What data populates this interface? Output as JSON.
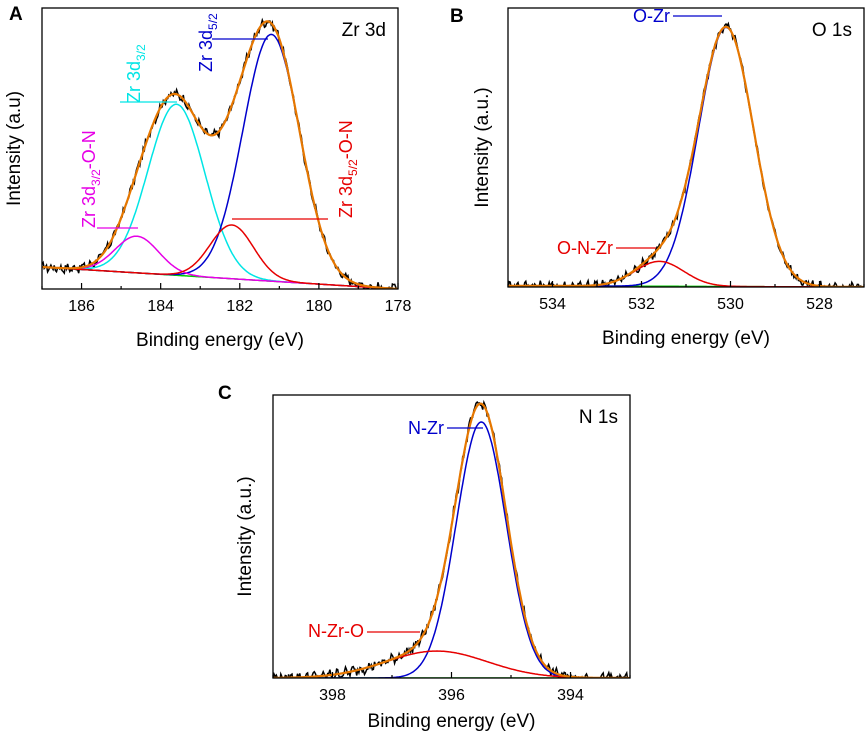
{
  "figure": {
    "description_panels": [
      "A",
      "B",
      "C"
    ]
  },
  "chart_data": [
    {
      "panel": "A",
      "type": "line",
      "title": "Zr 3d",
      "xlabel": "Binding energy (eV)",
      "ylabel": "Intensity (a.u)",
      "xlim": [
        187,
        178
      ],
      "ylim": [
        0,
        1.15
      ],
      "x_ticks": [
        186,
        184,
        182,
        180,
        178
      ],
      "x_tick_labels": [
        "186",
        "184",
        "182",
        "180",
        "178"
      ],
      "series": [
        {
          "name": "Zr 3d3/2",
          "color": "#00e5e5",
          "kind": "gauss",
          "center": 183.6,
          "amp": 0.7,
          "sigma": 0.72,
          "base": "background"
        },
        {
          "name": "Zr 3d5/2",
          "color": "#0000cc",
          "kind": "gauss",
          "center": 181.2,
          "amp": 1.01,
          "sigma": 0.72,
          "base": "background"
        },
        {
          "name": "Zr 3d3/2-O-N",
          "color": "#e600e6",
          "kind": "gauss",
          "center": 184.6,
          "amp": 0.15,
          "sigma": 0.55,
          "base": "background"
        },
        {
          "name": "Zr 3d5/2-O-N",
          "color": "#e60000",
          "kind": "gauss",
          "center": 182.2,
          "amp": 0.22,
          "sigma": 0.55,
          "base": "background"
        },
        {
          "name": "Background",
          "color": "#00cc00",
          "kind": "linear",
          "x": [
            187,
            178
          ],
          "y": [
            0.09,
            0.0
          ]
        },
        {
          "name": "Raw",
          "color": "#000000",
          "kind": "envelope",
          "noise": true
        },
        {
          "name": "Envelope",
          "color": "#e67700",
          "kind": "envelope"
        }
      ],
      "annotations": [
        {
          "label": "Zr 3d",
          "sub": "3/2",
          "suffix": "",
          "color": "#00e5e5",
          "peak_x": 183.6,
          "peak_y": 0.77
        },
        {
          "label": "Zr 3d",
          "sub": "5/2",
          "suffix": "",
          "color": "#0000cc",
          "peak_x": 181.2,
          "peak_y": 1.06
        },
        {
          "label": "Zr 3d",
          "sub": "3/2",
          "suffix": "-O-N",
          "color": "#e600e6",
          "peak_x": 184.6,
          "peak_y": 0.24
        },
        {
          "label": "Zr 3d",
          "sub": "5/2",
          "suffix": "-O-N",
          "color": "#e60000",
          "peak_x": 182.2,
          "peak_y": 0.26
        }
      ]
    },
    {
      "panel": "B",
      "type": "line",
      "title": "O 1s",
      "xlabel": "Binding energy (eV)",
      "ylabel": "Intensity (a.u.)",
      "xlim": [
        535,
        527
      ],
      "ylim": [
        0,
        1.12
      ],
      "x_ticks": [
        534,
        532,
        530,
        528
      ],
      "x_tick_labels": [
        "534",
        "532",
        "530",
        "528"
      ],
      "series": [
        {
          "name": "O-Zr",
          "color": "#0000cc",
          "kind": "gauss",
          "center": 530.1,
          "amp": 1.04,
          "sigma": 0.62,
          "base": "background"
        },
        {
          "name": "O-N-Zr",
          "color": "#e60000",
          "kind": "gauss",
          "center": 531.6,
          "amp": 0.1,
          "sigma": 0.55,
          "base": "background"
        },
        {
          "name": "Background",
          "color": "#00cc00",
          "kind": "linear",
          "x": [
            535,
            527
          ],
          "y": [
            0.005,
            0.0
          ]
        },
        {
          "name": "Raw",
          "color": "#000000",
          "kind": "envelope",
          "noise": true
        },
        {
          "name": "Envelope",
          "color": "#e67700",
          "kind": "envelope"
        }
      ],
      "annotations": [
        {
          "label": "O-Zr",
          "sub": "",
          "suffix": "",
          "color": "#0000cc",
          "peak_x": 530.1,
          "peak_y": 1.05
        },
        {
          "label": "O-N-Zr",
          "sub": "",
          "suffix": "",
          "color": "#e60000",
          "peak_x": 531.6,
          "peak_y": 0.11
        }
      ]
    },
    {
      "panel": "C",
      "type": "line",
      "title": "N 1s",
      "xlabel": "Binding energy (eV)",
      "ylabel": "Intensity (a.u.)",
      "xlim": [
        399,
        393
      ],
      "ylim": [
        0,
        1.05
      ],
      "x_ticks": [
        398,
        396,
        394
      ],
      "x_tick_labels": [
        "398",
        "396",
        "394"
      ],
      "series": [
        {
          "name": "N-Zr",
          "color": "#0000cc",
          "kind": "gauss",
          "center": 395.5,
          "amp": 0.95,
          "sigma": 0.42,
          "base": "background"
        },
        {
          "name": "N-Zr-O",
          "color": "#e60000",
          "kind": "gauss",
          "center": 396.25,
          "amp": 0.1,
          "sigma": 0.85,
          "base": "background"
        },
        {
          "name": "Background",
          "color": "#00cc00",
          "kind": "linear",
          "x": [
            399,
            393
          ],
          "y": [
            0.0,
            0.0
          ]
        },
        {
          "name": "Raw",
          "color": "#000000",
          "kind": "envelope",
          "noise": true
        },
        {
          "name": "Envelope",
          "color": "#e67700",
          "kind": "envelope"
        }
      ],
      "annotations": [
        {
          "label": "N-Zr",
          "sub": "",
          "suffix": "",
          "color": "#0000cc",
          "peak_x": 395.5,
          "peak_y": 0.95
        },
        {
          "label": "N-Zr-O",
          "sub": "",
          "suffix": "",
          "color": "#e60000",
          "peak_x": 396.25,
          "peak_y": 0.1
        }
      ]
    }
  ]
}
